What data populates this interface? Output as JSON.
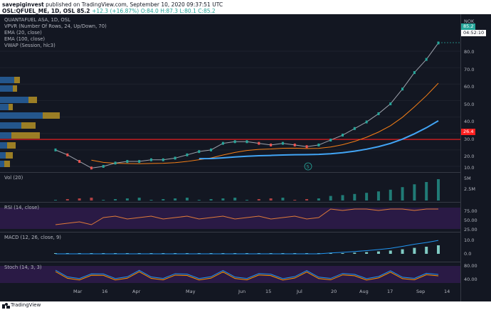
{
  "header": {
    "user": "savepiginvest",
    "published_text": "published on TradingView.com, September 10, 2020 09:37:51 UTC",
    "symbol": "OSL:QFUEL_ME, 1D, OSL",
    "last": "85.2",
    "change": "+12.3 (+16.87%)",
    "ohlc": "O:84.0 H:87.3 L:80.1 C:85.2"
  },
  "legend": {
    "title": "QUANTAFUEL ASA, 1D, OSL",
    "vpvr": "VPVR (Number Of Rows, 24, Up/Down, 70)",
    "ema20": "EMA (20, close)",
    "ema100": "EMA (100, close)",
    "vwap": "VWAP (Session, hlc3)",
    "vol": "Vol (20)",
    "rsi": "RSI (14, close)",
    "macd": "MACD (12, 26, close, 9)",
    "stoch": "Stoch (14, 3, 3)"
  },
  "price_axis": {
    "currency": "NOK",
    "ticks": [
      "80.0",
      "70.0",
      "60.0",
      "50.0",
      "40.0",
      "30.0",
      "20.0",
      "10.0"
    ],
    "last_price": "85.2",
    "countdown": "04:52:10",
    "level_line": "26.4",
    "colors": {
      "level": "#ff1f1f",
      "last": "#26a69a"
    }
  },
  "vol_axis": [
    "5M",
    "2.5M"
  ],
  "rsi_axis": [
    "75.00",
    "50.00",
    "25.00"
  ],
  "macd_axis": [
    "10.0",
    "0.0"
  ],
  "stoch_axis": [
    "80.00",
    "40.00"
  ],
  "x_axis": [
    "Mar",
    "16",
    "Apr",
    "May",
    "Jun",
    "15",
    "Jul",
    "20",
    "Aug",
    "17",
    "Sep",
    "14"
  ],
  "marker": "S",
  "footer": {
    "brand": "TradingView"
  },
  "chart_data": {
    "type": "line",
    "series": [
      {
        "name": "QUANTAFUEL ASA, 1D, OSL",
        "x": [
          "Feb 24",
          "Mar 2",
          "Mar 9",
          "Mar 16",
          "Mar 23",
          "Mar 30",
          "Apr 6",
          "Apr 13",
          "Apr 20",
          "Apr 27",
          "May 4",
          "May 11",
          "May 18",
          "May 25",
          "Jun 1",
          "Jun 8",
          "Jun 15",
          "Jun 22",
          "Jun 29",
          "Jul 6",
          "Jul 13",
          "Jul 20",
          "Jul 27",
          "Aug 3",
          "Aug 10",
          "Aug 17",
          "Aug 24",
          "Aug 31",
          "Sep 3",
          "Sep 7",
          "Sep 8",
          "Sep 9",
          "Sep 10"
        ],
        "values": [
          20,
          17,
          13,
          9,
          10,
          12,
          13,
          13,
          14,
          14,
          15,
          17,
          19,
          20,
          24,
          25,
          25,
          24,
          23,
          24,
          23,
          22,
          23,
          26,
          29,
          33,
          37,
          42,
          48,
          57,
          67,
          75,
          85
        ]
      }
    ],
    "ylim": [
      0,
      90
    ]
  }
}
